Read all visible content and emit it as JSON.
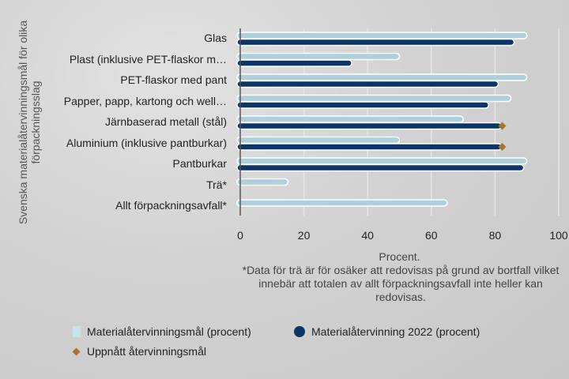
{
  "chart_data": {
    "type": "bar",
    "orientation": "horizontal",
    "categories": [
      "Glas",
      "Plast (inklusive PET-flaskor m…",
      "PET-flaskor med pant",
      "Papper, papp, kartong och well…",
      "Järnbaserad metall (stål)",
      "Aluminium (inklusive pantburkar)",
      "Pantburkar",
      "Trä*",
      "Allt förpackningsavfall*"
    ],
    "series": [
      {
        "name": "Materialåtervinningsmål (procent)",
        "color": "#aecfdc",
        "values": [
          90,
          50,
          90,
          85,
          70,
          50,
          90,
          15,
          65
        ]
      },
      {
        "name": "Materialåtervinning 2022 (procent)",
        "color": "#0d3466",
        "values": [
          86,
          35,
          81,
          78,
          82,
          82,
          89,
          null,
          null
        ]
      }
    ],
    "markers": {
      "name": "Uppnått återvinningsmål",
      "color": "#a8742a",
      "values": [
        null,
        null,
        null,
        null,
        82,
        82,
        null,
        null,
        null
      ]
    },
    "ylabel": "Svenska materialåtervinningsmål för olika förpackningsslag",
    "xlabel": "Procent.",
    "note": "*Data för trä är för osäker att redovisas på grund av bortfall vilket innebär att totalen av allt förpackningsavfall inte heller kan redovisas.",
    "xlim": [
      0,
      100
    ],
    "xticks": [
      "0",
      "20",
      "40",
      "60",
      "80",
      "100"
    ],
    "grid": true,
    "legend_position": "bottom-left"
  }
}
